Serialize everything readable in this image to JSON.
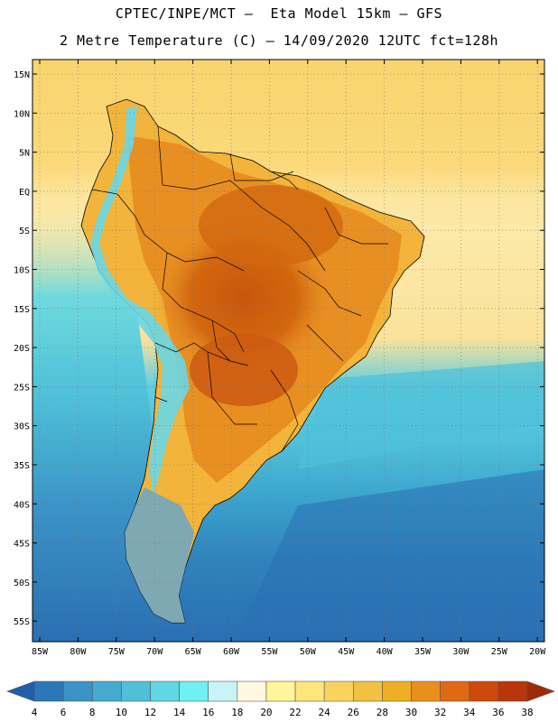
{
  "header": {
    "line1": "CPTEC/INPE/MCT –  Eta Model 15km – GFS",
    "line2": "2 Metre Temperature (C) – 14/09/2020 12UTC fct=128h"
  },
  "axes": {
    "lat_labels": [
      "15N",
      "10N",
      "5N",
      "EQ",
      "5S",
      "10S",
      "15S",
      "20S",
      "25S",
      "30S",
      "35S",
      "40S",
      "45S",
      "50S",
      "55S"
    ],
    "lon_labels": [
      "85W",
      "80W",
      "75W",
      "70W",
      "65W",
      "60W",
      "55W",
      "50W",
      "45W",
      "40W",
      "35W",
      "30W",
      "25W",
      "20W"
    ]
  },
  "colorbar": {
    "levels": [
      "4",
      "6",
      "8",
      "10",
      "12",
      "14",
      "16",
      "18",
      "20",
      "22",
      "24",
      "26",
      "28",
      "30",
      "32",
      "34",
      "36",
      "38"
    ],
    "colors": [
      "#1f5fa8",
      "#2a78b8",
      "#3a93c6",
      "#45a9d0",
      "#4fc0d8",
      "#5fd8e4",
      "#70f0f2",
      "#c8f4f8",
      "#fff8e0",
      "#fff59a",
      "#fde67a",
      "#f8d45e",
      "#f2c142",
      "#f0ae22",
      "#ea8f1c",
      "#e06a14",
      "#cc4a0c",
      "#b8360a",
      "#a02a08"
    ]
  },
  "fields": {
    "ocean_north": "#f9d46e",
    "ocean_equator": "#fce6a0",
    "ocean_warm": "#4fc0d8",
    "ocean_mid": "#3a93c6",
    "ocean_cold": "#2a6fb2",
    "land_hot": "#d0650f",
    "land_warm": "#e88f22",
    "land_mild": "#f2b43a",
    "andes_cool": "#6ad6e6",
    "patagonia": "#6aa7c8"
  }
}
